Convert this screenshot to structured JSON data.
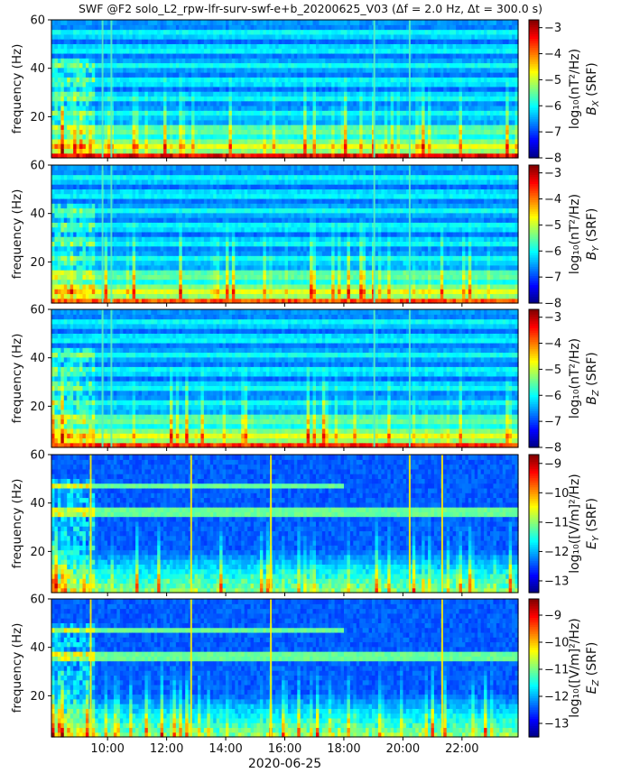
{
  "figure": {
    "title": "SWF @F2   solo_L2_rpw-lfr-surv-swf-e+b_20200625_V03      (Δf = 2.0 Hz, Δt = 300.0 s)",
    "xlabel": "2020-06-25",
    "xtick_labels": [
      "10:00",
      "12:00",
      "14:00",
      "16:00",
      "18:00",
      "20:00",
      "22:00"
    ]
  },
  "chart_data": [
    {
      "type": "heatmap",
      "panel": "Bx",
      "ylabel": "frequency (Hz)",
      "ylim": [
        3,
        60
      ],
      "yticks": [
        20,
        40,
        60
      ],
      "xlim_hours": [
        8.1,
        23.9
      ],
      "cbar_label": "log₁₀(nT²/Hz)",
      "cbar_sublabel": "B",
      "cbar_subscript": "X",
      "cbar_suffix": " (SRF)",
      "cbar_range": [
        -8,
        -2.7
      ],
      "cbar_ticks": [
        -3,
        -4,
        -5,
        -6,
        -7,
        -8
      ],
      "colormap": "jet",
      "low_band_level": -2.9,
      "lines_hz": [
        9.8,
        10.1,
        19.0,
        20.2
      ]
    },
    {
      "type": "heatmap",
      "panel": "By",
      "ylabel": "frequency (Hz)",
      "ylim": [
        3,
        60
      ],
      "yticks": [
        20,
        40,
        60
      ],
      "xlim_hours": [
        8.1,
        23.9
      ],
      "cbar_label": "log₁₀(nT²/Hz)",
      "cbar_sublabel": "B",
      "cbar_subscript": "Y",
      "cbar_suffix": " (SRF)",
      "cbar_range": [
        -8,
        -2.7
      ],
      "cbar_ticks": [
        -3,
        -4,
        -5,
        -6,
        -7,
        -8
      ],
      "colormap": "jet",
      "low_band_level": -3.4,
      "lines_hz": [
        9.8,
        10.1,
        19.0,
        20.2
      ]
    },
    {
      "type": "heatmap",
      "panel": "Bz",
      "ylabel": "frequency (Hz)",
      "ylim": [
        3,
        60
      ],
      "yticks": [
        20,
        40,
        60
      ],
      "xlim_hours": [
        8.1,
        23.9
      ],
      "cbar_label": "log₁₀(nT²/Hz)",
      "cbar_sublabel": "B",
      "cbar_subscript": "Z",
      "cbar_suffix": " (SRF)",
      "cbar_range": [
        -8,
        -2.7
      ],
      "cbar_ticks": [
        -3,
        -4,
        -5,
        -6,
        -7,
        -8
      ],
      "colormap": "jet",
      "low_band_level": -3.2,
      "lines_hz": [
        9.8,
        10.1,
        19.0,
        20.2
      ]
    },
    {
      "type": "heatmap",
      "panel": "Ey",
      "ylabel": "frequency (Hz)",
      "ylim": [
        3,
        60
      ],
      "yticks": [
        20,
        40,
        60
      ],
      "xlim_hours": [
        8.1,
        23.9
      ],
      "cbar_label": "log₁₀([V/m]²/Hz)",
      "cbar_sublabel": "E",
      "cbar_subscript": "Y",
      "cbar_suffix": " (SRF)",
      "cbar_range": [
        -13.4,
        -8.7
      ],
      "cbar_ticks": [
        -9,
        -10,
        -11,
        -12,
        -13
      ],
      "colormap": "jet",
      "line_bands_hz": [
        37,
        47
      ],
      "lines_hz": [
        9.4,
        12.8,
        15.5,
        20.2,
        21.3
      ]
    },
    {
      "type": "heatmap",
      "panel": "Ez",
      "ylabel": "frequency (Hz)",
      "ylim": [
        3,
        60
      ],
      "yticks": [
        20,
        40,
        60
      ],
      "xlim_hours": [
        8.1,
        23.9
      ],
      "cbar_label": "log₁₀([V/m]²/Hz)",
      "cbar_sublabel": "E",
      "cbar_subscript": "Z",
      "cbar_suffix": " (SRF)",
      "cbar_range": [
        -13.5,
        -8.4
      ],
      "cbar_ticks": [
        -9,
        -10,
        -11,
        -12,
        -13
      ],
      "colormap": "jet",
      "line_bands_hz": [
        37,
        47
      ],
      "lines_hz": [
        9.4,
        12.8,
        15.5,
        21.3
      ]
    }
  ]
}
